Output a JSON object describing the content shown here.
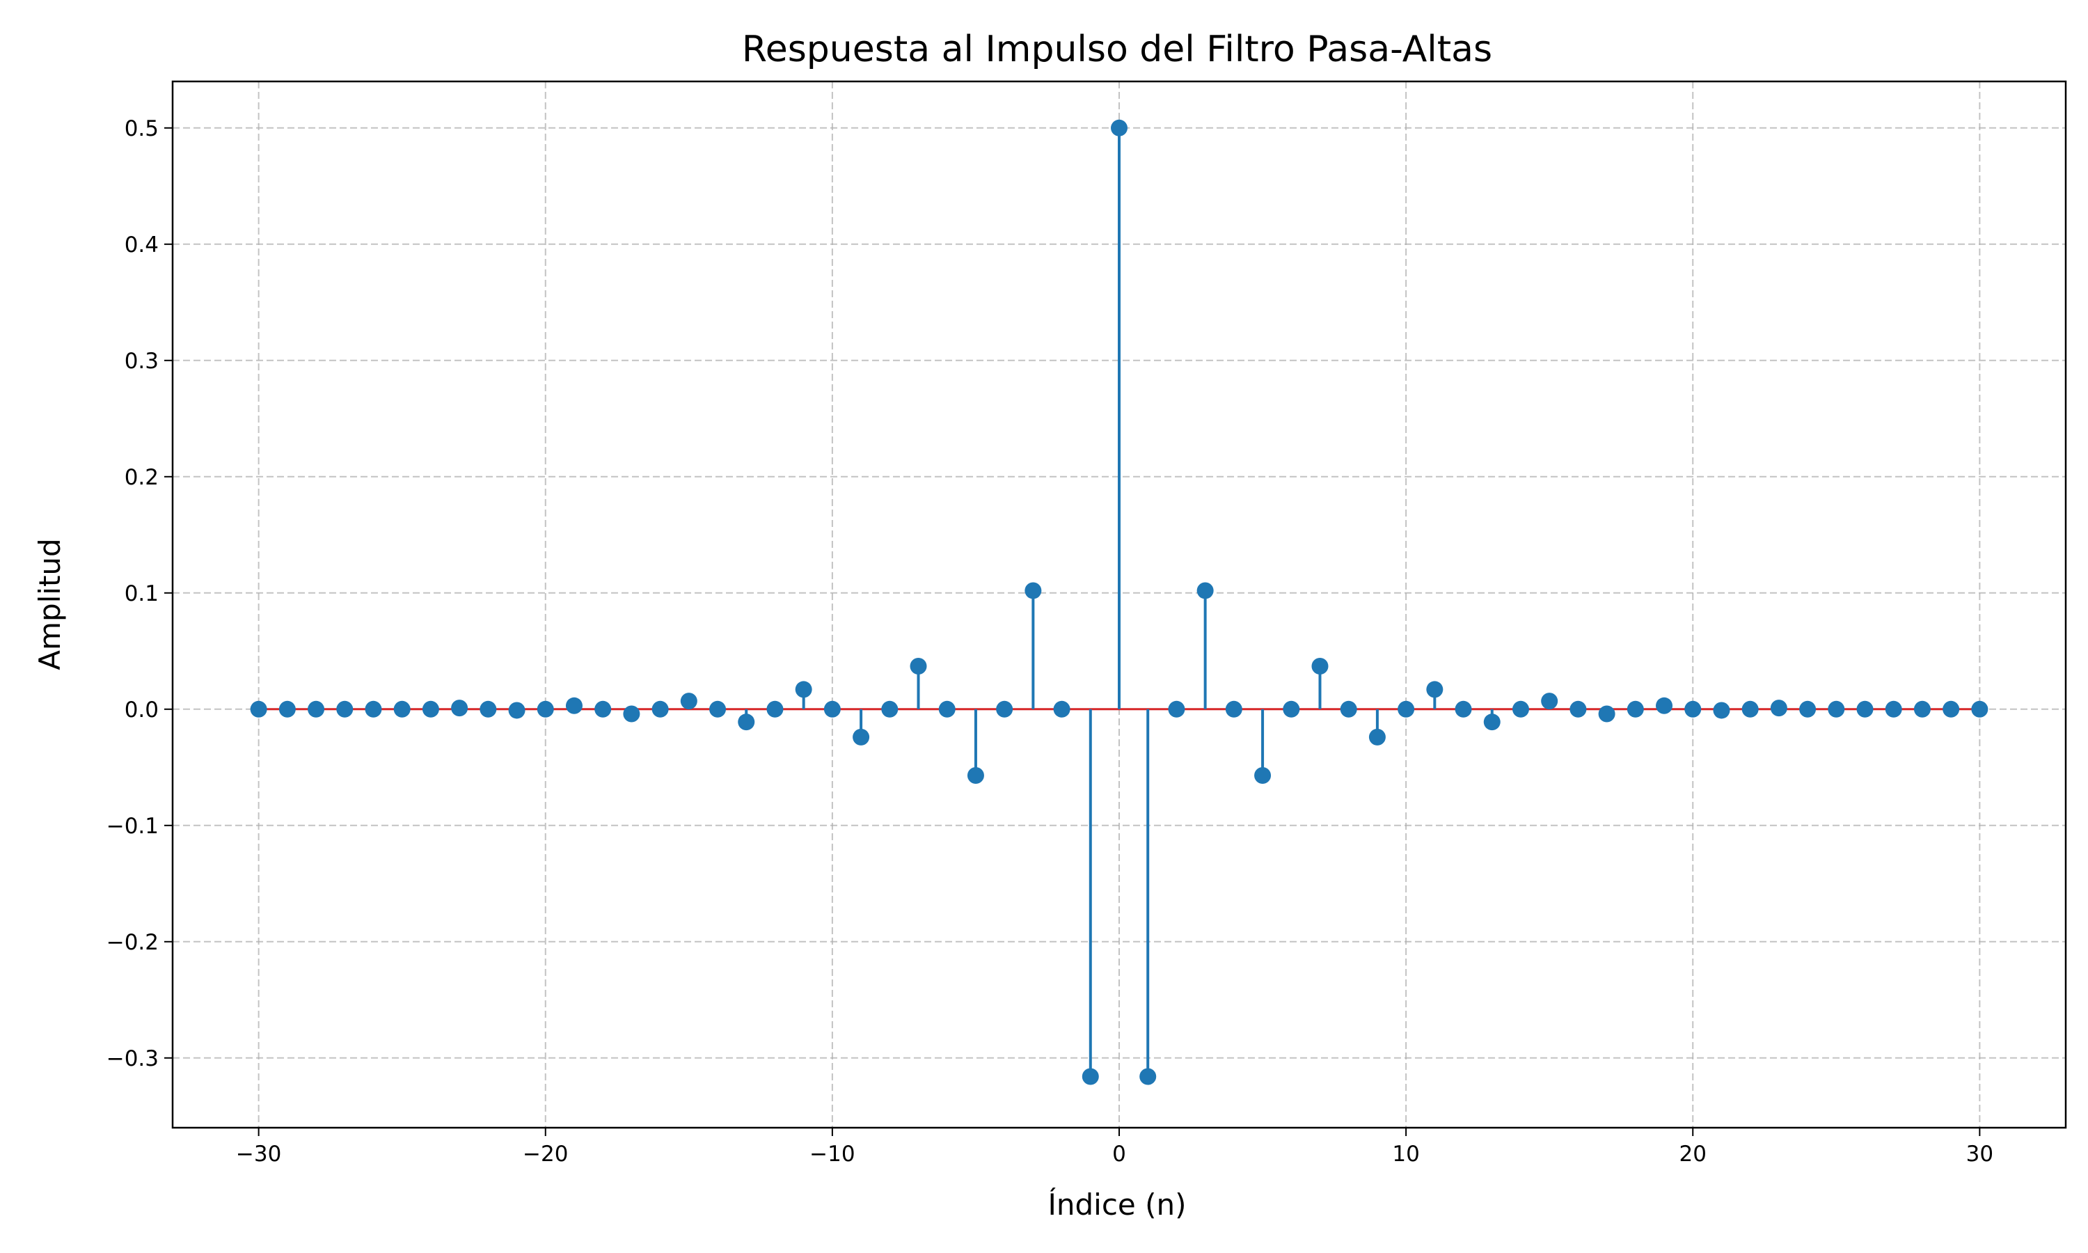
{
  "chart_data": {
    "type": "stem",
    "title": "Respuesta al Impulso del Filtro Pasa-Altas",
    "xlabel": "Índice (n)",
    "ylabel": "Amplitud",
    "xlim": [
      -33,
      33
    ],
    "ylim": [
      -0.36,
      0.54
    ],
    "xticks": [
      -30,
      -20,
      -10,
      0,
      10,
      20,
      30
    ],
    "xtick_labels": [
      "−30",
      "−20",
      "−10",
      "0",
      "10",
      "20",
      "30"
    ],
    "yticks": [
      -0.3,
      -0.2,
      -0.1,
      0.0,
      0.1,
      0.2,
      0.3,
      0.4,
      0.5
    ],
    "ytick_labels": [
      "−0.3",
      "−0.2",
      "−0.1",
      "0.0",
      "0.1",
      "0.2",
      "0.3",
      "0.4",
      "0.5"
    ],
    "grid": true,
    "color": "#1f77b4",
    "x": [
      -30,
      -29,
      -28,
      -27,
      -26,
      -25,
      -24,
      -23,
      -22,
      -21,
      -20,
      -19,
      -18,
      -17,
      -16,
      -15,
      -14,
      -13,
      -12,
      -11,
      -10,
      -9,
      -8,
      -7,
      -6,
      -5,
      -4,
      -3,
      -2,
      -1,
      0,
      1,
      2,
      3,
      4,
      5,
      6,
      7,
      8,
      9,
      10,
      11,
      12,
      13,
      14,
      15,
      16,
      17,
      18,
      19,
      20,
      21,
      22,
      23,
      24,
      25,
      26,
      27,
      28,
      29,
      30
    ],
    "y": [
      0.0,
      0.0,
      0.0,
      0.0,
      0.0,
      0.0,
      0.0,
      0.001,
      0.0,
      -0.001,
      0.0,
      0.003,
      0.0,
      -0.004,
      0.0,
      0.007,
      0.0,
      -0.011,
      0.0,
      0.017,
      0.0,
      -0.024,
      0.0,
      0.037,
      0.0,
      -0.057,
      0.0,
      0.102,
      0.0,
      -0.316,
      0.5,
      -0.316,
      0.0,
      0.102,
      0.0,
      -0.057,
      0.0,
      0.037,
      0.0,
      -0.024,
      0.0,
      0.017,
      0.0,
      -0.011,
      0.0,
      0.007,
      0.0,
      -0.004,
      0.0,
      0.003,
      0.0,
      -0.001,
      0.0,
      0.001,
      0.0,
      0.0,
      0.0,
      0.0,
      0.0,
      0.0,
      0.0
    ]
  }
}
